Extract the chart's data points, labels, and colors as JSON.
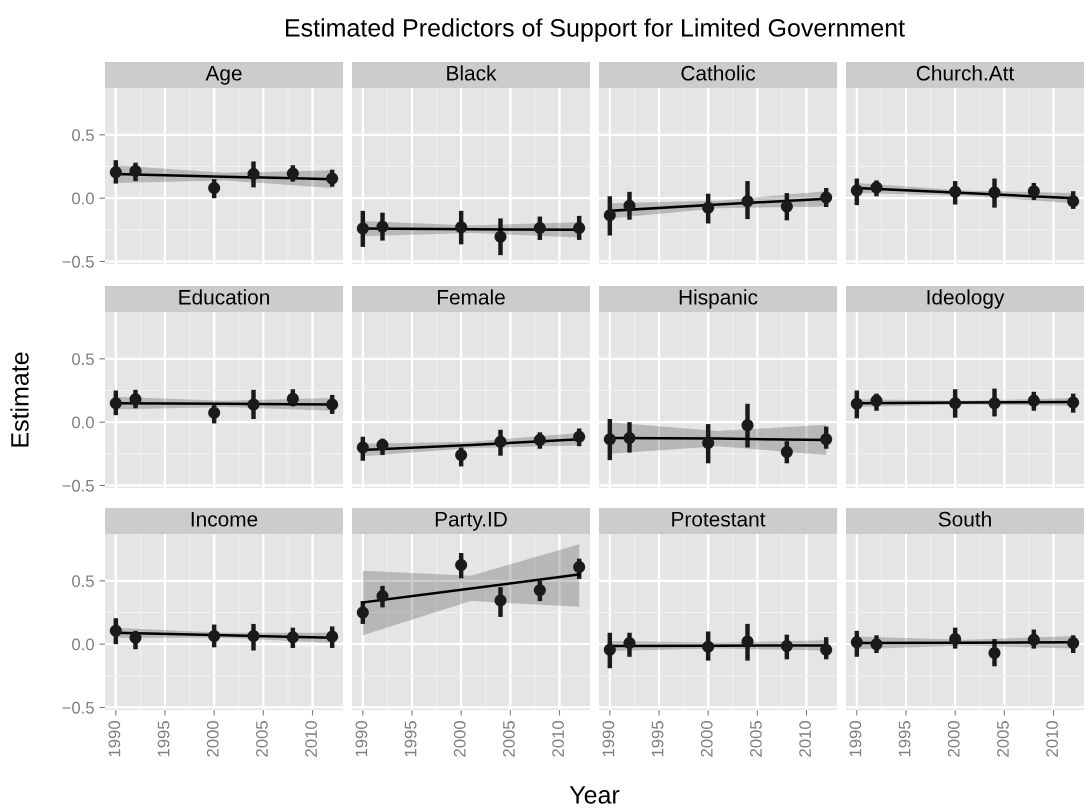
{
  "chart_data": [
    {
      "type": "scatter",
      "title": "Age",
      "annotations": [
        "Estimated Predictors of Support for Limited Government"
      ],
      "x": [
        1990,
        1992,
        2000,
        2004,
        2008,
        2012
      ],
      "xlim": [
        1988.9,
        2013.1
      ],
      "ylim": [
        -0.52,
        0.87
      ],
      "xticks": [
        1990,
        1995,
        2000,
        2005,
        2010
      ],
      "yticks": [
        {
          "value": -0.5,
          "label": "−0.5"
        },
        {
          "value": 0,
          "label": "0.0"
        },
        {
          "value": 0.5,
          "label": "0.5"
        }
      ],
      "tick_labels": "y",
      "grid": true,
      "series": [
        {
          "type": "scatter",
          "marker": "circle",
          "color": "#1a1a1a",
          "values": [
            0.205,
            0.215,
            0.08,
            0.19,
            0.195,
            0.155
          ],
          "errors": [
            [
              0.115,
              0.3
            ],
            [
              0.135,
              0.28
            ],
            [
              0.0,
              0.15
            ],
            [
              0.085,
              0.29
            ],
            [
              0.13,
              0.26
            ],
            [
              0.09,
              0.225
            ]
          ]
        },
        {
          "type": "line",
          "marker": "none",
          "color": "#000000",
          "x": [
            1990,
            2001,
            2012
          ],
          "values": [
            0.19,
            0.17,
            0.15
          ],
          "lower": [
            0.12,
            0.14,
            0.08
          ],
          "upper": [
            0.26,
            0.2,
            0.22
          ]
        }
      ]
    },
    {
      "type": "scatter",
      "title": "Black",
      "x": [
        1990,
        1992,
        2000,
        2004,
        2008,
        2012
      ],
      "xlim": [
        1988.9,
        2013.1
      ],
      "ylim": [
        -0.52,
        0.87
      ],
      "xticks": [
        1990,
        1995,
        2000,
        2005,
        2010
      ],
      "yticks": [
        -0.5,
        0,
        0.5
      ],
      "tick_labels": false,
      "grid": true,
      "series": [
        {
          "type": "scatter",
          "marker": "circle",
          "color": "#1a1a1a",
          "values": [
            -0.24,
            -0.225,
            -0.23,
            -0.305,
            -0.235,
            -0.235
          ],
          "errors": [
            [
              -0.385,
              -0.1
            ],
            [
              -0.335,
              -0.115
            ],
            [
              -0.365,
              -0.1
            ],
            [
              -0.45,
              -0.16
            ],
            [
              -0.33,
              -0.145
            ],
            [
              -0.33,
              -0.14
            ]
          ]
        },
        {
          "type": "line",
          "marker": "none",
          "color": "#000000",
          "x": [
            1990,
            2001,
            2012
          ],
          "values": [
            -0.24,
            -0.245,
            -0.25
          ],
          "lower": [
            -0.3,
            -0.275,
            -0.31
          ],
          "upper": [
            -0.18,
            -0.215,
            -0.19
          ]
        }
      ]
    },
    {
      "type": "scatter",
      "title": "Catholic",
      "x": [
        1990,
        1992,
        2000,
        2004,
        2008,
        2012
      ],
      "xlim": [
        1988.9,
        2013.1
      ],
      "ylim": [
        -0.52,
        0.87
      ],
      "xticks": [
        1990,
        1995,
        2000,
        2005,
        2010
      ],
      "yticks": [
        -0.5,
        0,
        0.5
      ],
      "tick_labels": false,
      "grid": true,
      "series": [
        {
          "type": "scatter",
          "marker": "circle",
          "color": "#1a1a1a",
          "values": [
            -0.135,
            -0.06,
            -0.075,
            -0.025,
            -0.065,
            0.005
          ],
          "errors": [
            [
              -0.295,
              0.015
            ],
            [
              -0.17,
              0.05
            ],
            [
              -0.2,
              0.035
            ],
            [
              -0.165,
              0.135
            ],
            [
              -0.175,
              0.04
            ],
            [
              -0.07,
              0.08
            ]
          ]
        },
        {
          "type": "line",
          "marker": "none",
          "color": "#000000",
          "x": [
            1990,
            2001,
            2012
          ],
          "values": [
            -0.1,
            -0.05,
            -0.005
          ],
          "lower": [
            -0.16,
            -0.08,
            -0.065
          ],
          "upper": [
            -0.04,
            -0.02,
            0.055
          ]
        }
      ]
    },
    {
      "type": "scatter",
      "title": "Church.Att",
      "x": [
        1990,
        1992,
        2000,
        2004,
        2008,
        2012
      ],
      "xlim": [
        1988.9,
        2013.1
      ],
      "ylim": [
        -0.52,
        0.87
      ],
      "xticks": [
        1990,
        1995,
        2000,
        2005,
        2010
      ],
      "yticks": [
        -0.5,
        0,
        0.5
      ],
      "tick_labels": false,
      "grid": true,
      "series": [
        {
          "type": "scatter",
          "marker": "circle",
          "color": "#1a1a1a",
          "values": [
            0.06,
            0.085,
            0.05,
            0.045,
            0.055,
            -0.025
          ],
          "errors": [
            [
              -0.055,
              0.155
            ],
            [
              0.015,
              0.14
            ],
            [
              -0.05,
              0.135
            ],
            [
              -0.075,
              0.155
            ],
            [
              -0.015,
              0.12
            ],
            [
              -0.085,
              0.055
            ]
          ]
        },
        {
          "type": "line",
          "marker": "none",
          "color": "#000000",
          "x": [
            1990,
            2001,
            2012
          ],
          "values": [
            0.08,
            0.04,
            0.0
          ],
          "lower": [
            0.04,
            0.02,
            -0.04
          ],
          "upper": [
            0.12,
            0.06,
            0.04
          ]
        }
      ]
    },
    {
      "type": "scatter",
      "title": "Education",
      "ylabel": "Estimate",
      "x": [
        1990,
        1992,
        2000,
        2004,
        2008,
        2012
      ],
      "xlim": [
        1988.9,
        2013.1
      ],
      "ylim": [
        -0.52,
        0.87
      ],
      "xticks": [
        1990,
        1995,
        2000,
        2005,
        2010
      ],
      "yticks": [
        {
          "value": -0.5,
          "label": "−0.5"
        },
        {
          "value": 0,
          "label": "0.0"
        },
        {
          "value": 0.5,
          "label": "0.5"
        }
      ],
      "tick_labels": "y",
      "grid": true,
      "series": [
        {
          "type": "scatter",
          "marker": "circle",
          "color": "#1a1a1a",
          "values": [
            0.15,
            0.18,
            0.075,
            0.14,
            0.185,
            0.14
          ],
          "errors": [
            [
              0.055,
              0.25
            ],
            [
              0.11,
              0.255
            ],
            [
              -0.01,
              0.135
            ],
            [
              0.025,
              0.255
            ],
            [
              0.125,
              0.26
            ],
            [
              0.065,
              0.215
            ]
          ]
        },
        {
          "type": "line",
          "marker": "none",
          "color": "#000000",
          "x": [
            1990,
            2001,
            2012
          ],
          "values": [
            0.15,
            0.145,
            0.14
          ],
          "lower": [
            0.1,
            0.12,
            0.09
          ],
          "upper": [
            0.2,
            0.17,
            0.19
          ]
        }
      ]
    },
    {
      "type": "scatter",
      "title": "Female",
      "x": [
        1990,
        1992,
        2000,
        2004,
        2008,
        2012
      ],
      "xlim": [
        1988.9,
        2013.1
      ],
      "ylim": [
        -0.52,
        0.87
      ],
      "xticks": [
        1990,
        1995,
        2000,
        2005,
        2010
      ],
      "yticks": [
        -0.5,
        0,
        0.5
      ],
      "tick_labels": false,
      "grid": true,
      "series": [
        {
          "type": "scatter",
          "marker": "circle",
          "color": "#1a1a1a",
          "values": [
            -0.2,
            -0.18,
            -0.26,
            -0.155,
            -0.14,
            -0.115
          ],
          "errors": [
            [
              -0.305,
              -0.115
            ],
            [
              -0.26,
              -0.13
            ],
            [
              -0.35,
              -0.2
            ],
            [
              -0.265,
              -0.06
            ],
            [
              -0.21,
              -0.08
            ],
            [
              -0.19,
              -0.05
            ]
          ]
        },
        {
          "type": "line",
          "marker": "none",
          "color": "#000000",
          "x": [
            1990,
            2001,
            2012
          ],
          "values": [
            -0.22,
            -0.18,
            -0.135
          ],
          "lower": [
            -0.27,
            -0.205,
            -0.185
          ],
          "upper": [
            -0.17,
            -0.155,
            -0.085
          ]
        }
      ]
    },
    {
      "type": "scatter",
      "title": "Hispanic",
      "x": [
        1990,
        1992,
        2000,
        2004,
        2008,
        2012
      ],
      "xlim": [
        1988.9,
        2013.1
      ],
      "ylim": [
        -0.52,
        0.87
      ],
      "xticks": [
        1990,
        1995,
        2000,
        2005,
        2010
      ],
      "yticks": [
        -0.5,
        0,
        0.5
      ],
      "tick_labels": false,
      "grid": true,
      "series": [
        {
          "type": "scatter",
          "marker": "circle",
          "color": "#1a1a1a",
          "values": [
            -0.135,
            -0.125,
            -0.165,
            -0.025,
            -0.235,
            -0.135
          ],
          "errors": [
            [
              -0.3,
              0.025
            ],
            [
              -0.24,
              0.0
            ],
            [
              -0.325,
              -0.015
            ],
            [
              -0.2,
              0.145
            ],
            [
              -0.325,
              -0.15
            ],
            [
              -0.21,
              -0.035
            ]
          ]
        },
        {
          "type": "line",
          "marker": "none",
          "color": "#000000",
          "x": [
            1990,
            2001,
            2012
          ],
          "values": [
            -0.125,
            -0.13,
            -0.14
          ],
          "lower": [
            -0.25,
            -0.19,
            -0.26
          ],
          "upper": [
            0.0,
            -0.07,
            -0.02
          ]
        }
      ]
    },
    {
      "type": "scatter",
      "title": "Ideology",
      "x": [
        1990,
        1992,
        2000,
        2004,
        2008,
        2012
      ],
      "xlim": [
        1988.9,
        2013.1
      ],
      "ylim": [
        -0.52,
        0.87
      ],
      "xticks": [
        1990,
        1995,
        2000,
        2005,
        2010
      ],
      "yticks": [
        -0.5,
        0,
        0.5
      ],
      "tick_labels": false,
      "grid": true,
      "series": [
        {
          "type": "scatter",
          "marker": "circle",
          "color": "#1a1a1a",
          "values": [
            0.145,
            0.17,
            0.15,
            0.15,
            0.17,
            0.155
          ],
          "errors": [
            [
              0.03,
              0.25
            ],
            [
              0.09,
              0.225
            ],
            [
              0.035,
              0.26
            ],
            [
              0.045,
              0.265
            ],
            [
              0.09,
              0.24
            ],
            [
              0.075,
              0.225
            ]
          ]
        },
        {
          "type": "line",
          "marker": "none",
          "color": "#000000",
          "x": [
            1990,
            2001,
            2012
          ],
          "values": [
            0.15,
            0.155,
            0.16
          ],
          "lower": [
            0.12,
            0.14,
            0.13
          ],
          "upper": [
            0.18,
            0.17,
            0.19
          ]
        }
      ]
    },
    {
      "type": "scatter",
      "title": "Income",
      "x": [
        1990,
        1992,
        2000,
        2004,
        2008,
        2012
      ],
      "xlim": [
        1988.9,
        2013.1
      ],
      "ylim": [
        -0.52,
        0.87
      ],
      "xticks": [
        1990,
        1995,
        2000,
        2005,
        2010
      ],
      "yticks": [
        {
          "value": -0.5,
          "label": "−0.5"
        },
        {
          "value": 0,
          "label": "0.0"
        },
        {
          "value": 0.5,
          "label": "0.5"
        }
      ],
      "grid": true,
      "series": [
        {
          "type": "scatter",
          "marker": "circle",
          "color": "#1a1a1a",
          "values": [
            0.105,
            0.05,
            0.065,
            0.065,
            0.055,
            0.06
          ],
          "errors": [
            [
              0.0,
              0.205
            ],
            [
              -0.04,
              0.105
            ],
            [
              -0.025,
              0.155
            ],
            [
              -0.05,
              0.16
            ],
            [
              -0.03,
              0.13
            ],
            [
              -0.03,
              0.14
            ]
          ]
        },
        {
          "type": "line",
          "marker": "none",
          "color": "#000000",
          "x": [
            1990,
            2001,
            2012
          ],
          "values": [
            0.09,
            0.07,
            0.05
          ],
          "lower": [
            0.05,
            0.05,
            0.01
          ],
          "upper": [
            0.13,
            0.09,
            0.09
          ]
        }
      ]
    },
    {
      "type": "scatter",
      "title": "Party.ID",
      "xlabel": "Year",
      "x": [
        1990,
        1992,
        2000,
        2004,
        2008,
        2012
      ],
      "xlim": [
        1988.9,
        2013.1
      ],
      "ylim": [
        -0.52,
        0.87
      ],
      "xticks": [
        1990,
        1995,
        2000,
        2005,
        2010
      ],
      "yticks": [
        -0.5,
        0,
        0.5
      ],
      "tick_labels": "x",
      "grid": true,
      "series": [
        {
          "type": "scatter",
          "marker": "circle",
          "color": "#1a1a1a",
          "values": [
            0.25,
            0.38,
            0.625,
            0.345,
            0.425,
            0.61
          ],
          "errors": [
            [
              0.16,
              0.34
            ],
            [
              0.29,
              0.46
            ],
            [
              0.52,
              0.72
            ],
            [
              0.215,
              0.45
            ],
            [
              0.34,
              0.5
            ],
            [
              0.515,
              0.675
            ]
          ]
        },
        {
          "type": "line",
          "marker": "none",
          "color": "#000000",
          "x": [
            1990,
            2001,
            2012
          ],
          "values": [
            0.33,
            0.44,
            0.55
          ],
          "lower": [
            0.07,
            0.34,
            0.295
          ],
          "upper": [
            0.58,
            0.54,
            0.79
          ]
        }
      ]
    },
    {
      "type": "scatter",
      "title": "Protestant",
      "x": [
        1990,
        1992,
        2000,
        2004,
        2008,
        2012
      ],
      "xlim": [
        1988.9,
        2013.1
      ],
      "ylim": [
        -0.52,
        0.87
      ],
      "xticks": [
        1990,
        1995,
        2000,
        2005,
        2010
      ],
      "yticks": [
        -0.5,
        0,
        0.5
      ],
      "tick_labels": "x",
      "grid": true,
      "series": [
        {
          "type": "scatter",
          "marker": "circle",
          "color": "#1a1a1a",
          "values": [
            -0.045,
            0.01,
            -0.02,
            0.02,
            -0.015,
            -0.045
          ],
          "errors": [
            [
              -0.19,
              0.09
            ],
            [
              -0.1,
              0.09
            ],
            [
              -0.13,
              0.1
            ],
            [
              -0.13,
              0.16
            ],
            [
              -0.12,
              0.075
            ],
            [
              -0.12,
              0.055
            ]
          ]
        },
        {
          "type": "line",
          "marker": "none",
          "color": "#000000",
          "x": [
            1990,
            2001,
            2012
          ],
          "values": [
            -0.015,
            -0.012,
            -0.01
          ],
          "lower": [
            -0.055,
            -0.035,
            -0.05
          ],
          "upper": [
            0.025,
            0.011,
            0.03
          ]
        }
      ]
    },
    {
      "type": "scatter",
      "title": "South",
      "x": [
        1990,
        1992,
        2000,
        2004,
        2008,
        2012
      ],
      "xlim": [
        1988.9,
        2013.1
      ],
      "ylim": [
        -0.52,
        0.87
      ],
      "xticks": [
        1990,
        1995,
        2000,
        2005,
        2010
      ],
      "yticks": [
        -0.5,
        0,
        0.5
      ],
      "tick_labels": "x",
      "grid": true,
      "series": [
        {
          "type": "scatter",
          "marker": "circle",
          "color": "#1a1a1a",
          "values": [
            0.015,
            0.0,
            0.04,
            -0.07,
            0.035,
            0.01
          ],
          "errors": [
            [
              -0.1,
              0.105
            ],
            [
              -0.07,
              0.07
            ],
            [
              -0.035,
              0.13
            ],
            [
              -0.175,
              0.04
            ],
            [
              -0.035,
              0.115
            ],
            [
              -0.07,
              0.07
            ]
          ]
        },
        {
          "type": "line",
          "marker": "none",
          "color": "#000000",
          "x": [
            1990,
            2001,
            2012
          ],
          "values": [
            0.01,
            0.012,
            0.015
          ],
          "lower": [
            -0.04,
            -0.01,
            -0.035
          ],
          "upper": [
            0.06,
            0.034,
            0.065
          ]
        }
      ]
    }
  ]
}
